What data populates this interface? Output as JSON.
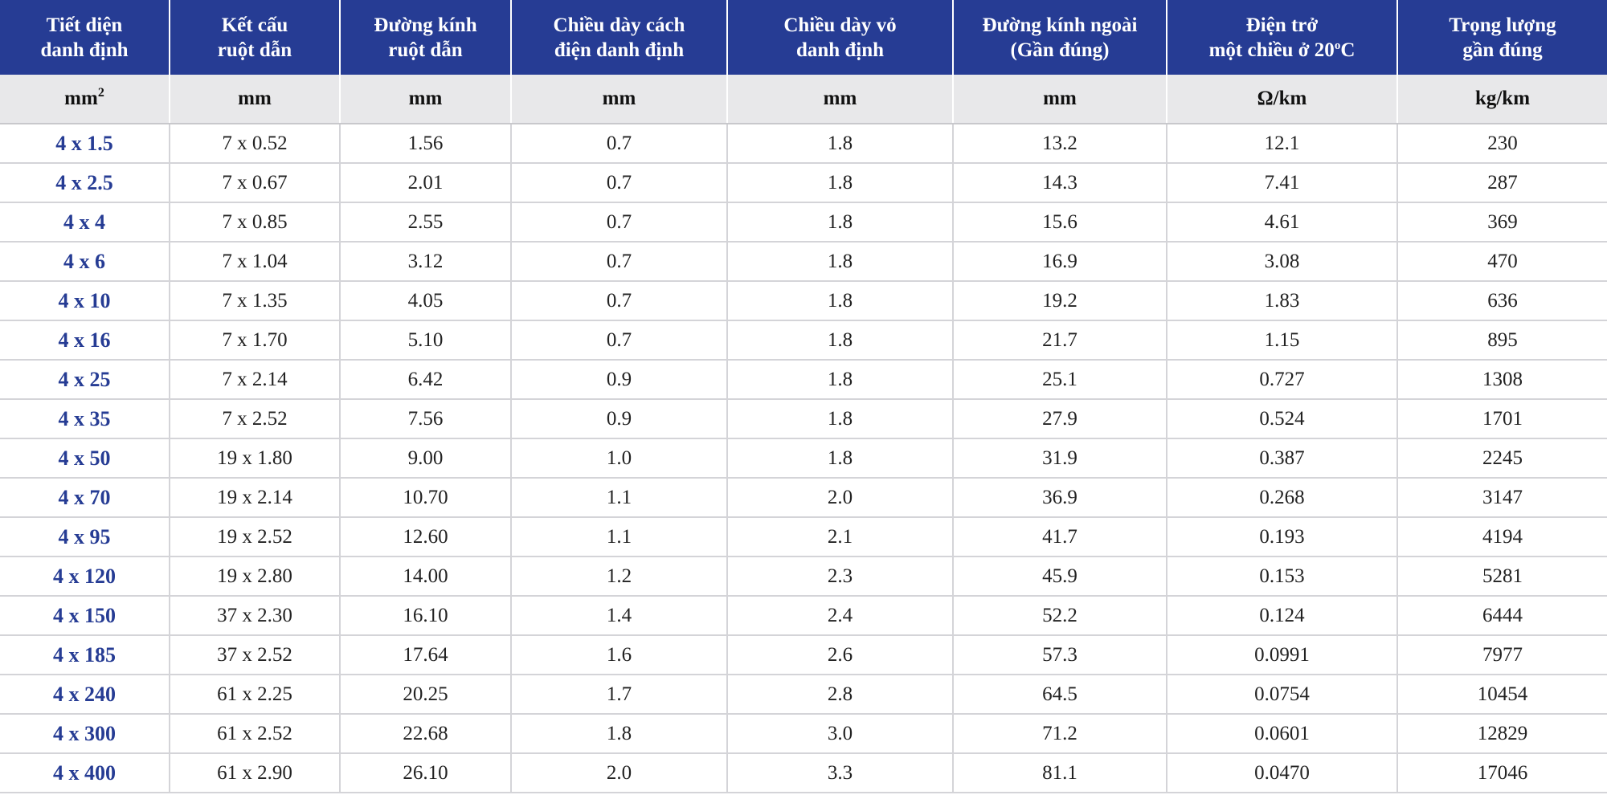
{
  "colors": {
    "header_bg": "#263c94",
    "header_text": "#ffffff",
    "units_bg": "#e8e8ea",
    "first_col_text": "#263c94",
    "body_text": "#222222",
    "grid": "#d4d4d8"
  },
  "table": {
    "headers": [
      "Tiết diện\ndanh định",
      "Kết cấu\nruột dẫn",
      "Đường kính\nruột dẫn",
      "Chiều dày cách\nđiện danh định",
      "Chiều dày vỏ\ndanh định",
      "Đường kính ngoài\n(Gần đúng)",
      "Điện trở",
      "Trọng lượng\ngần đúng"
    ],
    "resistance_header": {
      "line2_prefix": "một chiều ở 20",
      "sup": "o",
      "suffix": "C"
    },
    "units": {
      "cross_section_base": "mm",
      "cross_section_sup": "2",
      "rest": [
        "mm",
        "mm",
        "mm",
        "mm",
        "mm",
        "Ω/km",
        "kg/km"
      ]
    },
    "rows": [
      [
        "4 x 1.5",
        "7 x 0.52",
        "1.56",
        "0.7",
        "1.8",
        "13.2",
        "12.1",
        "230"
      ],
      [
        "4 x 2.5",
        "7 x 0.67",
        "2.01",
        "0.7",
        "1.8",
        "14.3",
        "7.41",
        "287"
      ],
      [
        "4 x 4",
        "7 x 0.85",
        "2.55",
        "0.7",
        "1.8",
        "15.6",
        "4.61",
        "369"
      ],
      [
        "4 x 6",
        "7 x 1.04",
        "3.12",
        "0.7",
        "1.8",
        "16.9",
        "3.08",
        "470"
      ],
      [
        "4 x 10",
        "7 x 1.35",
        "4.05",
        "0.7",
        "1.8",
        "19.2",
        "1.83",
        "636"
      ],
      [
        "4 x 16",
        "7 x 1.70",
        "5.10",
        "0.7",
        "1.8",
        "21.7",
        "1.15",
        "895"
      ],
      [
        "4 x 25",
        "7 x 2.14",
        "6.42",
        "0.9",
        "1.8",
        "25.1",
        "0.727",
        "1308"
      ],
      [
        "4 x 35",
        "7 x 2.52",
        "7.56",
        "0.9",
        "1.8",
        "27.9",
        "0.524",
        "1701"
      ],
      [
        "4 x 50",
        "19 x 1.80",
        "9.00",
        "1.0",
        "1.8",
        "31.9",
        "0.387",
        "2245"
      ],
      [
        "4 x 70",
        "19 x 2.14",
        "10.70",
        "1.1",
        "2.0",
        "36.9",
        "0.268",
        "3147"
      ],
      [
        "4 x 95",
        "19 x 2.52",
        "12.60",
        "1.1",
        "2.1",
        "41.7",
        "0.193",
        "4194"
      ],
      [
        "4 x 120",
        "19 x 2.80",
        "14.00",
        "1.2",
        "2.3",
        "45.9",
        "0.153",
        "5281"
      ],
      [
        "4 x 150",
        "37 x 2.30",
        "16.10",
        "1.4",
        "2.4",
        "52.2",
        "0.124",
        "6444"
      ],
      [
        "4 x 185",
        "37 x 2.52",
        "17.64",
        "1.6",
        "2.6",
        "57.3",
        "0.0991",
        "7977"
      ],
      [
        "4 x 240",
        "61 x 2.25",
        "20.25",
        "1.7",
        "2.8",
        "64.5",
        "0.0754",
        "10454"
      ],
      [
        "4 x 300",
        "61 x 2.52",
        "22.68",
        "1.8",
        "3.0",
        "71.2",
        "0.0601",
        "12829"
      ],
      [
        "4 x 400",
        "61 x 2.90",
        "26.10",
        "2.0",
        "3.3",
        "81.1",
        "0.0470",
        "17046"
      ]
    ]
  }
}
